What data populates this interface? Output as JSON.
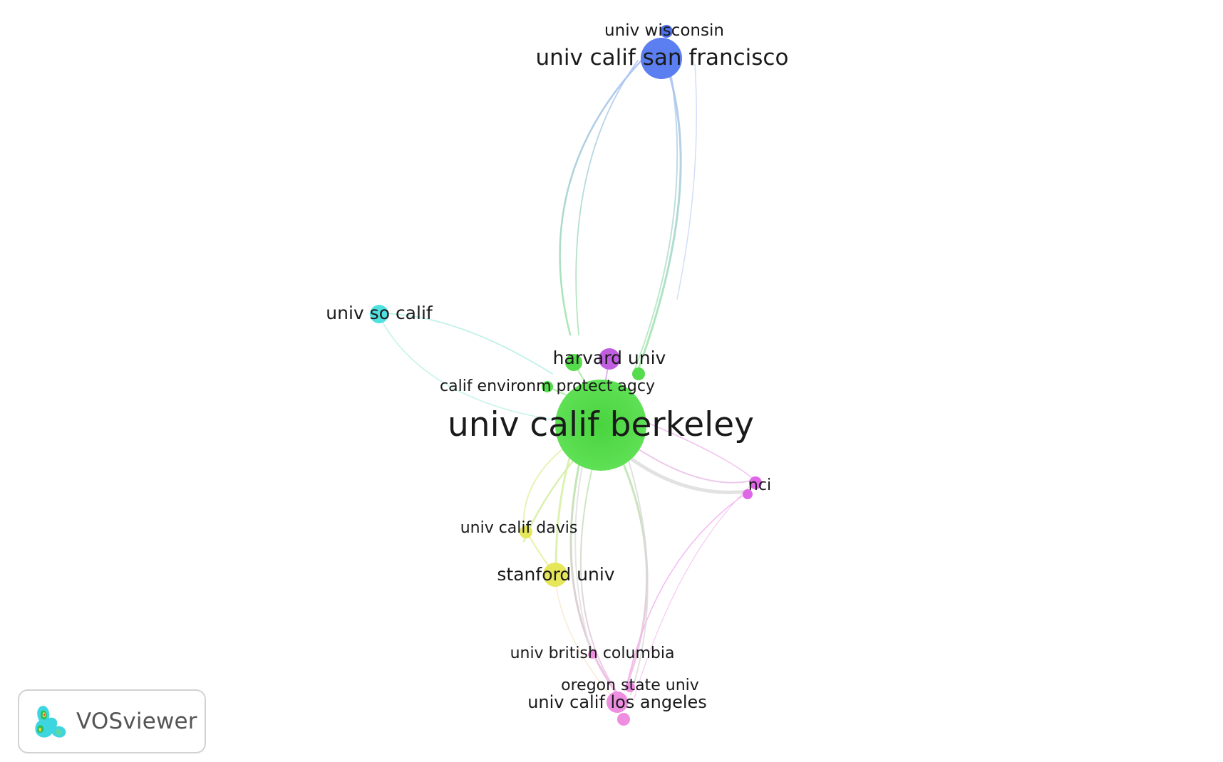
{
  "app": {
    "brand": "VOSviewer"
  },
  "network": {
    "nodes": [
      {
        "id": "berkeley",
        "label": "univ calif berkeley",
        "color": "#55dc4c"
      },
      {
        "id": "ucsf",
        "label": "univ calif san francisco",
        "color": "#5b7ef0"
      },
      {
        "id": "wisconsin",
        "label": "univ wisconsin",
        "color": "#5b7ef0"
      },
      {
        "id": "usc",
        "label": "univ so calif",
        "color": "#4fe0e0"
      },
      {
        "id": "harvard",
        "label": "harvard univ",
        "color": "#c15ee0"
      },
      {
        "id": "green1",
        "label": "",
        "color": "#55dc4c"
      },
      {
        "id": "green2",
        "label": "",
        "color": "#55dc4c"
      },
      {
        "id": "calepa",
        "label": "calif environm protect agcy",
        "color": "#55dc4c"
      },
      {
        "id": "nci",
        "label": "nci",
        "color": "#e066e8"
      },
      {
        "id": "magenta2",
        "label": "",
        "color": "#e066e8"
      },
      {
        "id": "davis",
        "label": "univ calif davis",
        "color": "#e6e65a"
      },
      {
        "id": "stanford",
        "label": "stanford univ",
        "color": "#e6e65a"
      },
      {
        "id": "ubc",
        "label": "univ british columbia",
        "color": "#ee8ee0"
      },
      {
        "id": "oregon",
        "label": "oregon state univ",
        "color": "#ee8ee0"
      },
      {
        "id": "ucla",
        "label": "univ calif los angeles",
        "color": "#ee8ee0"
      },
      {
        "id": "pink2",
        "label": "",
        "color": "#ee8ee0"
      }
    ]
  }
}
